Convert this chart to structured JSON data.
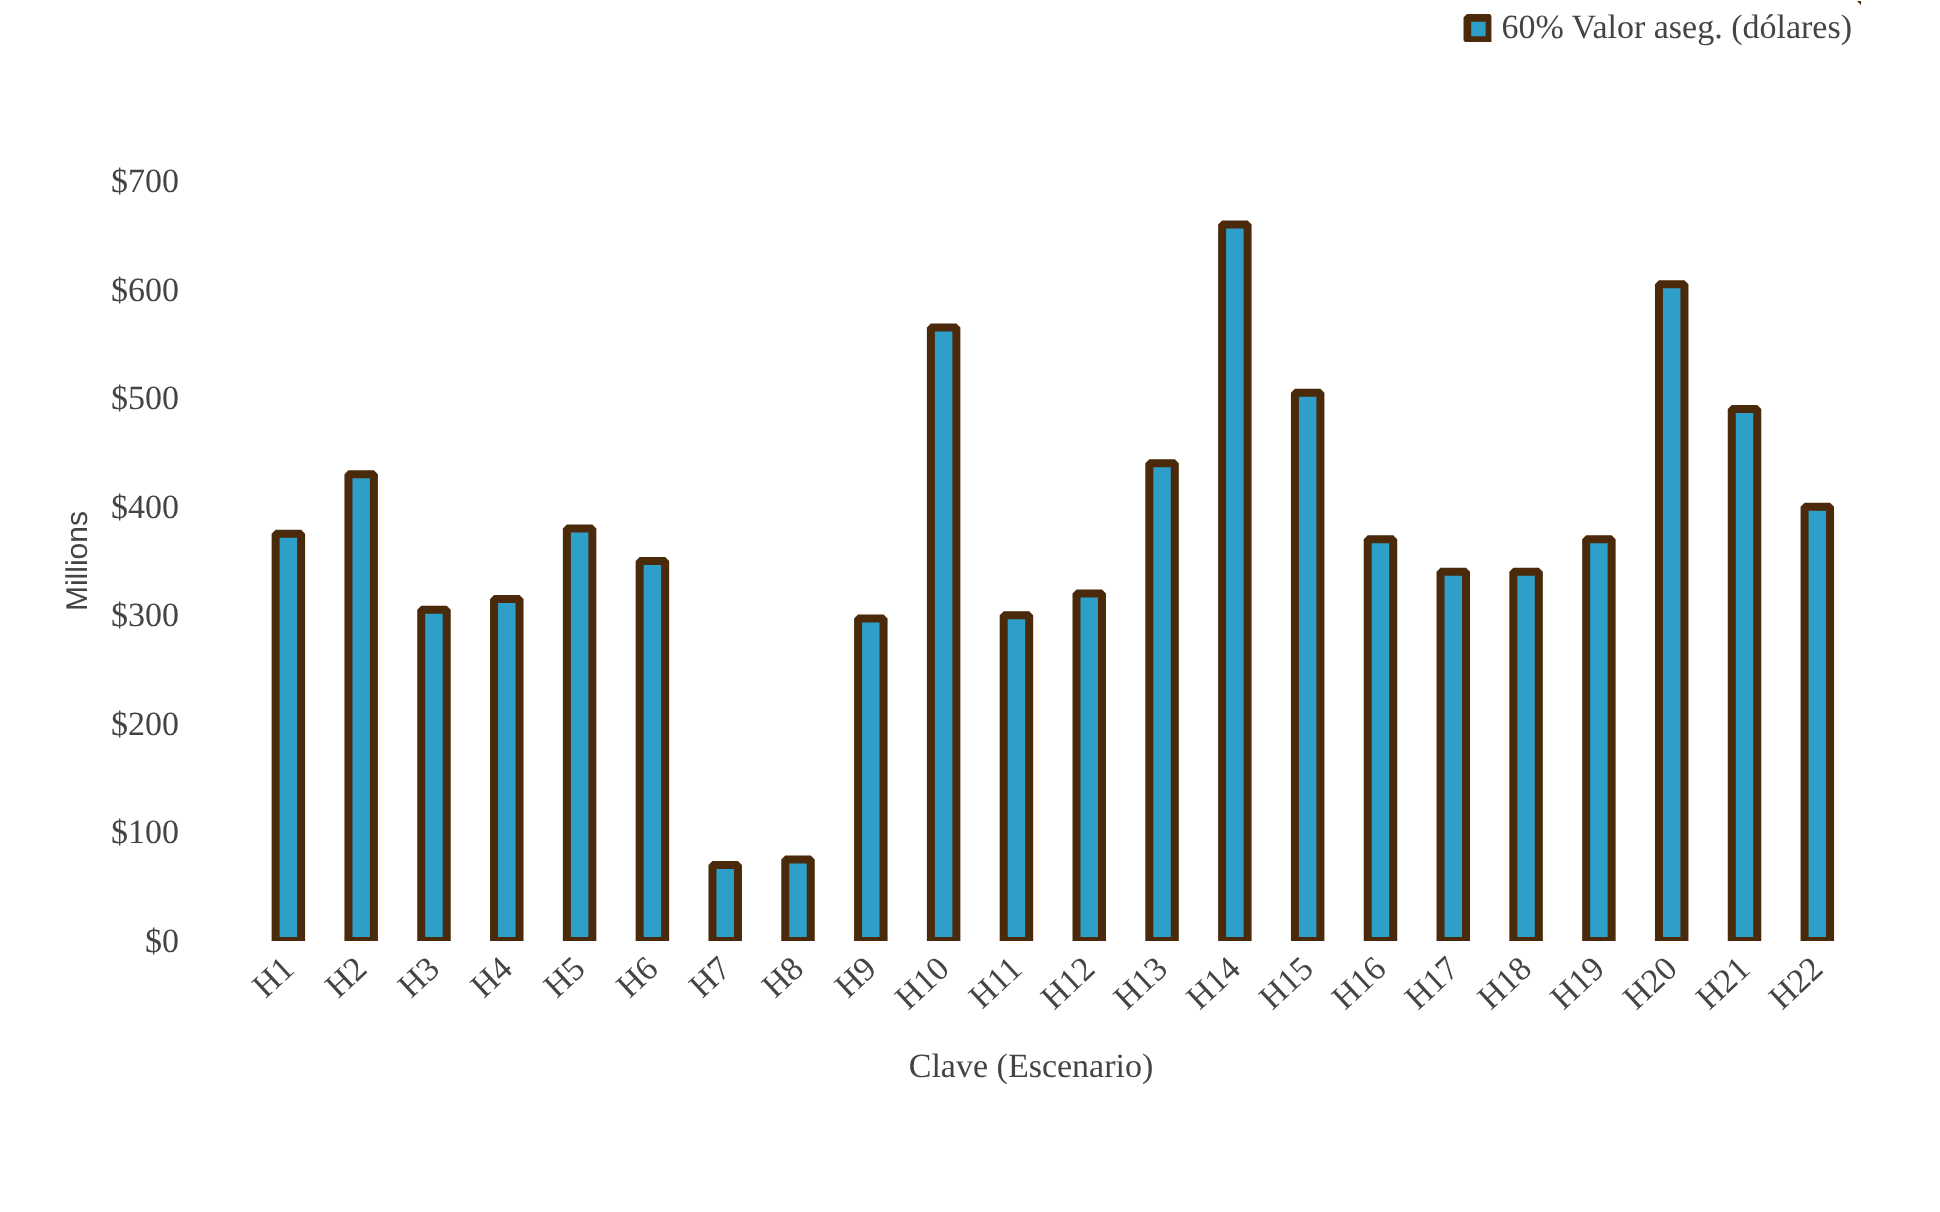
{
  "chart_data": {
    "type": "bar",
    "xlabel": "Clave (Escenario)",
    "ylabel": "Millions",
    "categories": [
      "H1",
      "H2",
      "H3",
      "H4",
      "H5",
      "H6",
      "H7",
      "H8",
      "H9",
      "H10",
      "H11",
      "H12",
      "H13",
      "H14",
      "H15",
      "H16",
      "H17",
      "H18",
      "H19",
      "H20",
      "H21",
      "H22"
    ],
    "series": [
      {
        "name": "60% Valor aseg. (dólares)",
        "color": "#2e9fc9",
        "values": [
          375,
          430,
          305,
          315,
          380,
          350,
          70,
          75,
          297,
          565,
          300,
          320,
          440,
          660,
          505,
          370,
          340,
          340,
          370,
          605,
          490,
          400
        ]
      }
    ],
    "ylim": [
      0,
      700
    ],
    "yticks": [
      {
        "value": 0,
        "label": "$0"
      },
      {
        "value": 100,
        "label": "$100"
      },
      {
        "value": 200,
        "label": "$200"
      },
      {
        "value": 300,
        "label": "$300"
      },
      {
        "value": 400,
        "label": "$400"
      },
      {
        "value": 500,
        "label": "$500"
      },
      {
        "value": 600,
        "label": "$600"
      },
      {
        "value": 700,
        "label": "$700"
      }
    ],
    "grid": false,
    "legend": "top right"
  }
}
